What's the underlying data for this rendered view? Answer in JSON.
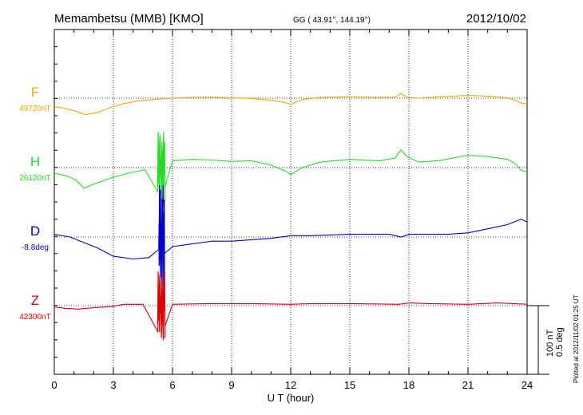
{
  "header": {
    "station": "Memambetsu (MMB)  [KMO]",
    "coords": "GG ( 43.91°, 144.19°)",
    "date": "2012/10/02"
  },
  "footer": {
    "plotted": "Plotted at 2012/11/02 01:25 UT"
  },
  "scale": {
    "nt": "100 nT",
    "deg": "0.5 deg"
  },
  "colors": {
    "F": "#f0a800",
    "H": "#22dd22",
    "D": "#0000cc",
    "Z": "#dd0000",
    "grid": "#000000"
  },
  "chart_data": {
    "type": "line",
    "title": "Memambetsu (MMB)  [KMO]",
    "xlabel": "U T (hour)",
    "ylabel": "",
    "xlim": [
      0,
      24
    ],
    "xticks": [
      "0",
      "3",
      "6",
      "9",
      "12",
      "15",
      "18",
      "21",
      "24"
    ],
    "series": [
      {
        "name": "F",
        "baseline_label": "49720nT",
        "unit": "nT",
        "baseline": 49720,
        "x": [
          0,
          0.7,
          1.2,
          1.6,
          2.2,
          2.8,
          3.5,
          4.3,
          5.2,
          6,
          7,
          8,
          9,
          10,
          11,
          11.8,
          12,
          12.6,
          13.5,
          15,
          16.5,
          17.3,
          17.6,
          17.9,
          18.5,
          19.5,
          21,
          22,
          23,
          23.4,
          23.7,
          24
        ],
        "values": [
          -12,
          -16,
          -20,
          -24,
          -21,
          -14,
          -8,
          -4,
          -1.5,
          0,
          1,
          1.5,
          0.5,
          -0.5,
          -3,
          -7,
          -9,
          -2,
          1,
          2,
          1,
          1.5,
          7,
          1,
          0,
          2,
          4,
          3,
          0.5,
          -3,
          -7,
          -9
        ]
      },
      {
        "name": "H",
        "baseline_label": "26120nT",
        "unit": "nT",
        "baseline": 26120,
        "x": [
          0,
          0.6,
          1.1,
          1.5,
          2.2,
          3,
          3.8,
          4.6,
          5.3,
          5.5,
          6,
          7,
          8,
          9,
          10,
          11,
          11.8,
          12,
          12.6,
          13.5,
          15,
          16.5,
          17.3,
          17.6,
          17.9,
          18.5,
          19.5,
          21,
          22,
          23,
          23.4,
          23.7,
          24
        ],
        "values": [
          -8,
          -12,
          -18,
          -30,
          -22,
          -14,
          -8,
          -3,
          0,
          2,
          10,
          12,
          11,
          9,
          10,
          4,
          -6,
          -10,
          0,
          8,
          12,
          10,
          14,
          26,
          16,
          8,
          10,
          18,
          16,
          12,
          6,
          -4,
          -6
        ],
        "spikes": {
          "x": [
            5.25,
            5.35,
            5.45,
            5.55,
            5.62
          ],
          "values": [
            -35,
            45,
            -40,
            52,
            -28
          ]
        }
      },
      {
        "name": "D",
        "baseline_label": "-8.8deg",
        "unit": "deg",
        "baseline": -8.8,
        "x": [
          0,
          0.8,
          1.5,
          2.2,
          3,
          4,
          4.8,
          5.3,
          6,
          7,
          8,
          9,
          10,
          11,
          12,
          13,
          15,
          17,
          17.6,
          18,
          19,
          20,
          21,
          22,
          23,
          23.7,
          24
        ],
        "values": [
          0.02,
          0.0,
          -0.04,
          -0.08,
          -0.14,
          -0.16,
          -0.15,
          -0.09,
          -0.07,
          -0.05,
          -0.03,
          -0.03,
          -0.02,
          -0.01,
          0.01,
          0.01,
          0.02,
          0.02,
          0.0,
          0.02,
          0.02,
          0.02,
          0.03,
          0.06,
          0.09,
          0.13,
          0.11
        ],
        "spikes": {
          "x": [
            5.32,
            5.42,
            5.52,
            5.6
          ],
          "values": [
            0.1,
            -0.2,
            0.38,
            -0.12
          ]
        }
      },
      {
        "name": "Z",
        "baseline_label": "42300nT",
        "unit": "nT",
        "baseline": 42300,
        "x": [
          0,
          0.6,
          1.2,
          2,
          3,
          3.5,
          4.5,
          5.5,
          6,
          8,
          10,
          12,
          13,
          15,
          17.5,
          18,
          19,
          21,
          22.5,
          23.3,
          24
        ],
        "values": [
          -2,
          -4,
          -5,
          -3,
          -1,
          2,
          2,
          1,
          2,
          3,
          3,
          2,
          3,
          3,
          2,
          4,
          3,
          2,
          4,
          3,
          2
        ],
        "spikes": {
          "x": [
            5.25,
            5.35,
            5.45,
            5.55,
            5.62
          ],
          "values": [
            -38,
            45,
            -40,
            50,
            -30
          ]
        }
      }
    ]
  }
}
